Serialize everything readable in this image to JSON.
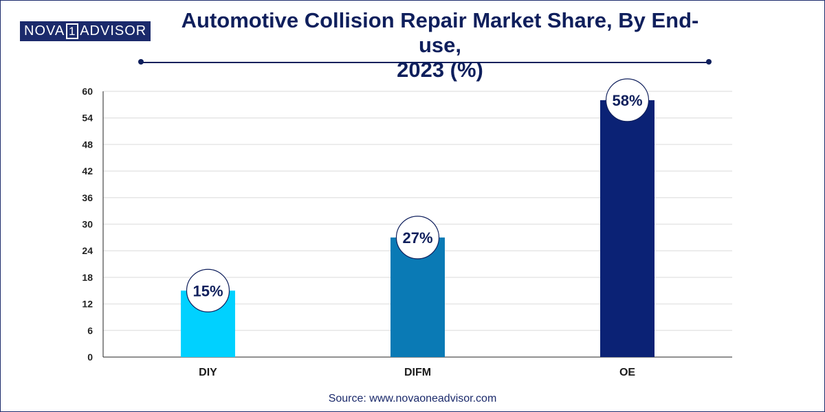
{
  "brand": {
    "left": "NOVA",
    "mid": "1",
    "right": "ADVISOR"
  },
  "header": {
    "title_line1": "Automotive Collision Repair Market Share, By End-use,",
    "title_line2": "2023 (%)"
  },
  "colors": {
    "navy": "#0f1f5c",
    "bar_diy": "#00d1ff",
    "bar_difm": "#0a7ab5",
    "bar_oe": "#0b2275",
    "grid": "#e6e6e6"
  },
  "chart_data": {
    "type": "bar",
    "title": "Automotive Collision Repair Market Share, By End-use, 2023 (%)",
    "xlabel": "",
    "ylabel": "",
    "categories": [
      "DIY",
      "DIFM",
      "OE"
    ],
    "values": [
      15,
      27,
      58
    ],
    "value_labels": [
      "15%",
      "27%",
      "58%"
    ],
    "ylim": [
      0,
      60
    ],
    "yticks": [
      0,
      6,
      12,
      18,
      24,
      30,
      36,
      42,
      48,
      54,
      60
    ],
    "grid": true,
    "legend": "none"
  },
  "footer": {
    "source": "Source: www.novaoneadvisor.com"
  }
}
